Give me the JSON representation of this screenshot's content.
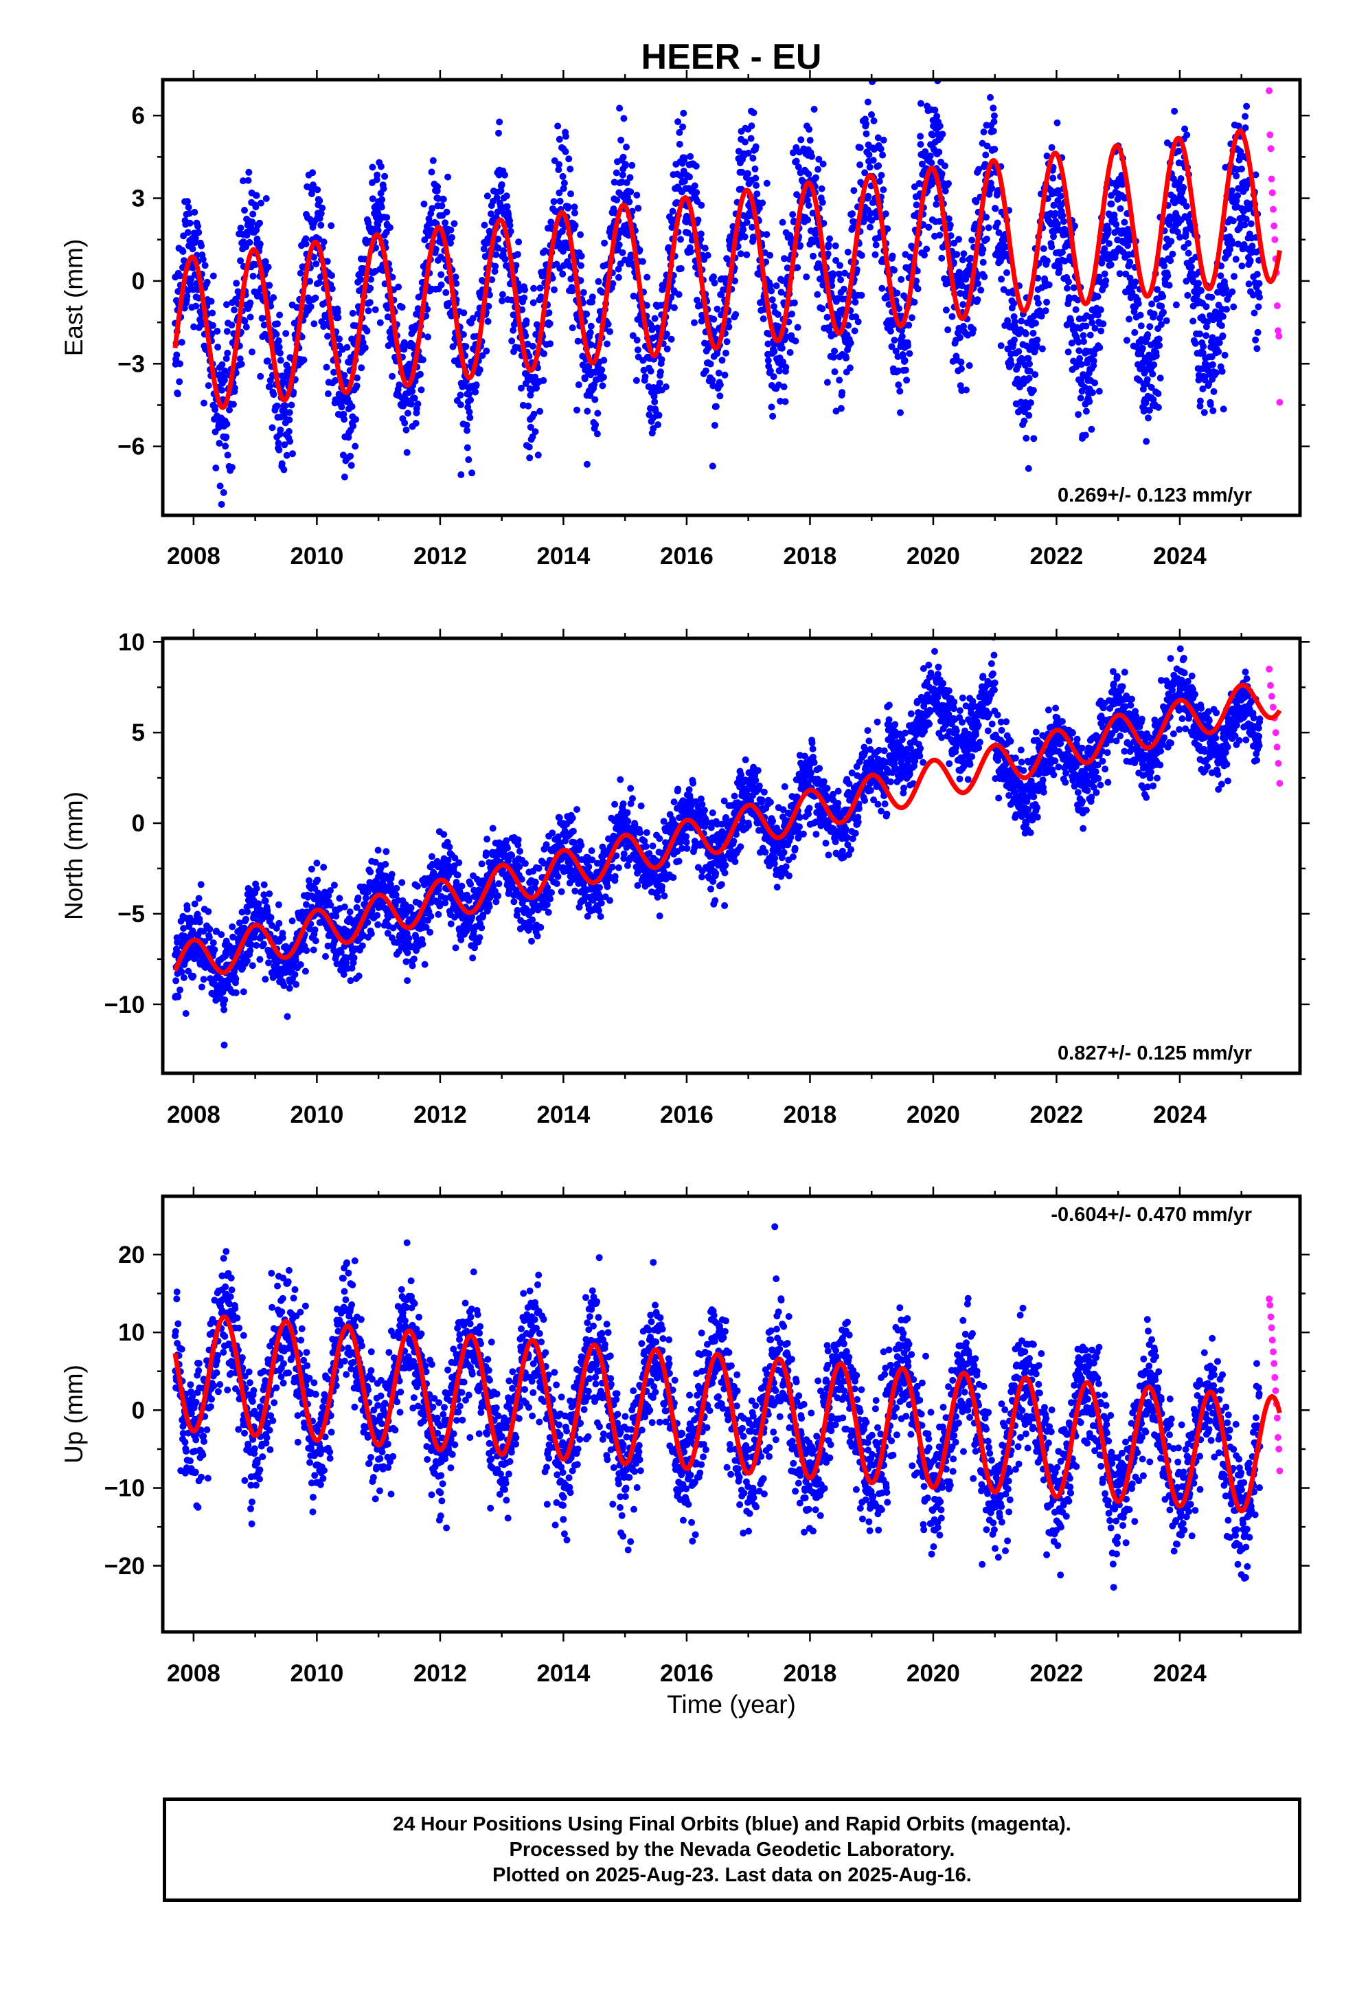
{
  "title": "HEER - EU",
  "colors": {
    "final": "#0000ff",
    "rapid": "#ff22ff",
    "model": "#ff0000"
  },
  "chart_data": [
    {
      "type": "scatter",
      "component": "east",
      "ylabel": "East (mm)",
      "xlim": [
        2007.5,
        2025.95
      ],
      "ylim": [
        -8.5,
        7.3
      ],
      "yticks": [
        -6,
        -3,
        0,
        3,
        6
      ],
      "xticks": [
        2008,
        2010,
        2012,
        2014,
        2016,
        2018,
        2020,
        2022,
        2024
      ],
      "rate_label": "0.269+/- 0.123 mm/yr",
      "data_start": 2007.7,
      "data_end": 2025.3,
      "rapid_start": 2025.45,
      "rapid_end": 2025.62,
      "seasonal_amp": 3.0,
      "seasonal_phase": 1.73,
      "scatter_sd": 1.35,
      "model": {
        "start": 2007.7,
        "end": 2025.62,
        "y0": -2.0,
        "slope": 0.269,
        "amp": 2.8,
        "phase": 1.73
      },
      "rapid_points": [
        6.9,
        5.3,
        4.8,
        3.7,
        3.2,
        2.6,
        2.0,
        1.5,
        0.8,
        0.3,
        -0.9,
        -1.8,
        -2.0,
        -4.4
      ]
    },
    {
      "type": "scatter",
      "component": "north",
      "ylabel": "North (mm)",
      "xlim": [
        2007.5,
        2025.95
      ],
      "ylim": [
        -13.8,
        10.2
      ],
      "yticks": [
        -10,
        -5,
        0,
        5,
        10
      ],
      "xticks": [
        2008,
        2010,
        2012,
        2014,
        2016,
        2018,
        2020,
        2022,
        2024
      ],
      "rate_label": "0.827+/- 0.125 mm/yr",
      "data_start": 2007.7,
      "data_end": 2025.3,
      "rapid_start": 2025.45,
      "rapid_end": 2025.62,
      "seasonal_amp": 1.5,
      "seasonal_phase": 1.57,
      "scatter_sd": 1.0,
      "model": {
        "start": 2007.7,
        "end": 2025.62,
        "y0": -7.8,
        "slope": 0.827,
        "amp": 1.1,
        "phase": 1.57
      },
      "rapid_points": [
        8.5,
        7.6,
        7.0,
        6.4,
        5.8,
        5.0,
        4.2,
        3.3,
        2.2
      ]
    },
    {
      "type": "scatter",
      "component": "up",
      "ylabel": "Up (mm)",
      "xlabel": "Time (year)",
      "xlim": [
        2007.5,
        2025.95
      ],
      "ylim": [
        -28.5,
        27.5
      ],
      "yticks": [
        -20,
        -10,
        0,
        10,
        20
      ],
      "xticks": [
        2008,
        2010,
        2012,
        2014,
        2016,
        2018,
        2020,
        2022,
        2024
      ],
      "rate_label": "-0.604+/- 0.470 mm/yr",
      "data_start": 2007.7,
      "data_end": 2025.3,
      "rapid_start": 2025.45,
      "rapid_end": 2025.62,
      "seasonal_amp": 7.5,
      "seasonal_phase": -1.57,
      "scatter_sd": 4.0,
      "model": {
        "start": 2007.7,
        "end": 2025.62,
        "y0": 5.0,
        "slope": -0.604,
        "amp": 7.5,
        "phase": -1.57
      },
      "rapid_points": [
        14.3,
        13.5,
        12.0,
        10.6,
        9.0,
        7.5,
        6.0,
        4.2,
        2.5,
        0.8,
        -1.0,
        -3.5,
        -5.0,
        -7.8
      ]
    }
  ],
  "footer": {
    "line1": "24 Hour Positions Using Final Orbits (blue) and Rapid Orbits (magenta).",
    "line2": "Processed by the Nevada Geodetic Laboratory.",
    "line3": "Plotted on 2025-Aug-23. Last data on 2025-Aug-16."
  }
}
